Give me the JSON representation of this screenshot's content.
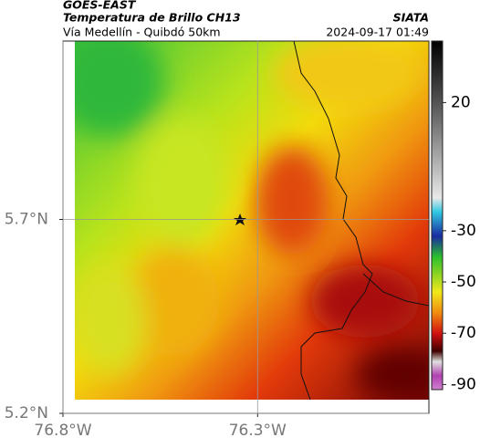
{
  "header": {
    "source": "GOES-EAST",
    "product": "Temperatura de Brillo CH13",
    "org": "SIATA",
    "route": "Vía Medellín - Quibdó 50km",
    "timestamp": "2024-09-17 01:49"
  },
  "map": {
    "xlim": [
      -76.8,
      -75.86
    ],
    "ylim": [
      5.2,
      6.16
    ],
    "xticks": [
      {
        "value": -76.8,
        "label": "76.8°W"
      },
      {
        "value": -76.3,
        "label": "76.3°W"
      }
    ],
    "yticks": [
      {
        "value": 5.2,
        "label": "5.2°N"
      },
      {
        "value": 5.7,
        "label": "5.7°N"
      }
    ],
    "grid": true
  },
  "colorbar": {
    "clim": [
      -92,
      44
    ],
    "ticks": [
      20,
      -30,
      -50,
      -70,
      -90
    ]
  }
}
